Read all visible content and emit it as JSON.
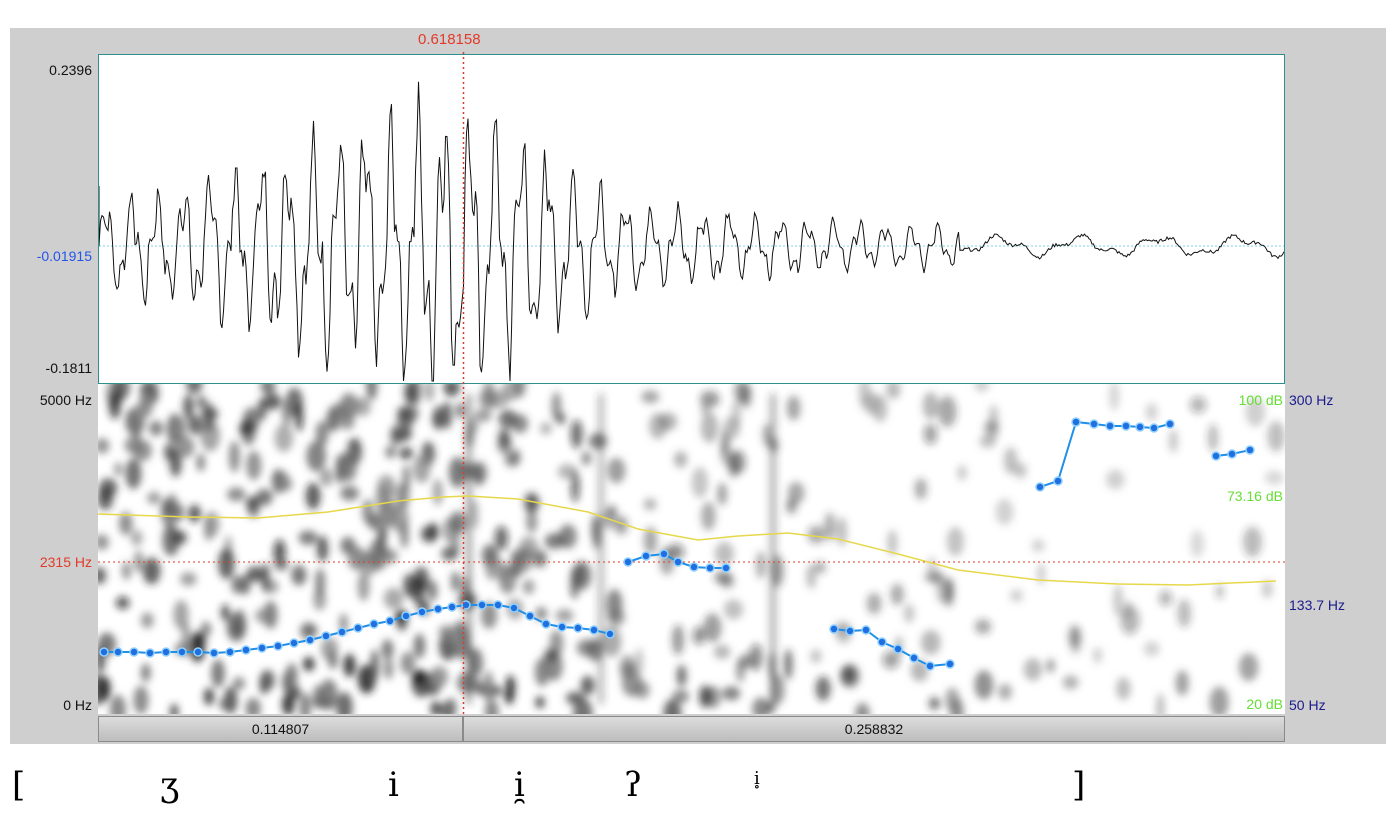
{
  "cursor_time": "0.618158",
  "waveform": {
    "y_max_label": "0.2396",
    "y_cursor_label": "-0.01915",
    "y_min_label": "-0.1811"
  },
  "spectrogram": {
    "freq_top_label": "5000 Hz",
    "freq_cursor_label": "2315 Hz",
    "freq_bottom_label": "0 Hz",
    "intensity_top_label": "100 dB",
    "intensity_current_label": "73.16 dB",
    "intensity_bottom_label": "20 dB",
    "pitch_top_label": "300 Hz",
    "pitch_current_label": "133.7 Hz",
    "pitch_bottom_label": "50 Hz"
  },
  "time_segments": {
    "left_duration": "0.114807",
    "right_duration": "0.258832"
  },
  "transcription": {
    "open_bracket": "[",
    "seg1": "ʒ",
    "seg2": "i",
    "seg3": "i̯",
    "seg4": "ʔ",
    "seg5": "i̥",
    "close_bracket": "]"
  },
  "colors": {
    "cursor": "#e23a2a",
    "waveform_midline": "#7fd6e6",
    "pitch": "#1f8fe8",
    "intensity": "#e6d84a",
    "db_labels": "#66dd33",
    "pitch_labels": "#1a1a8c",
    "zero_label": "#2255ee"
  }
}
